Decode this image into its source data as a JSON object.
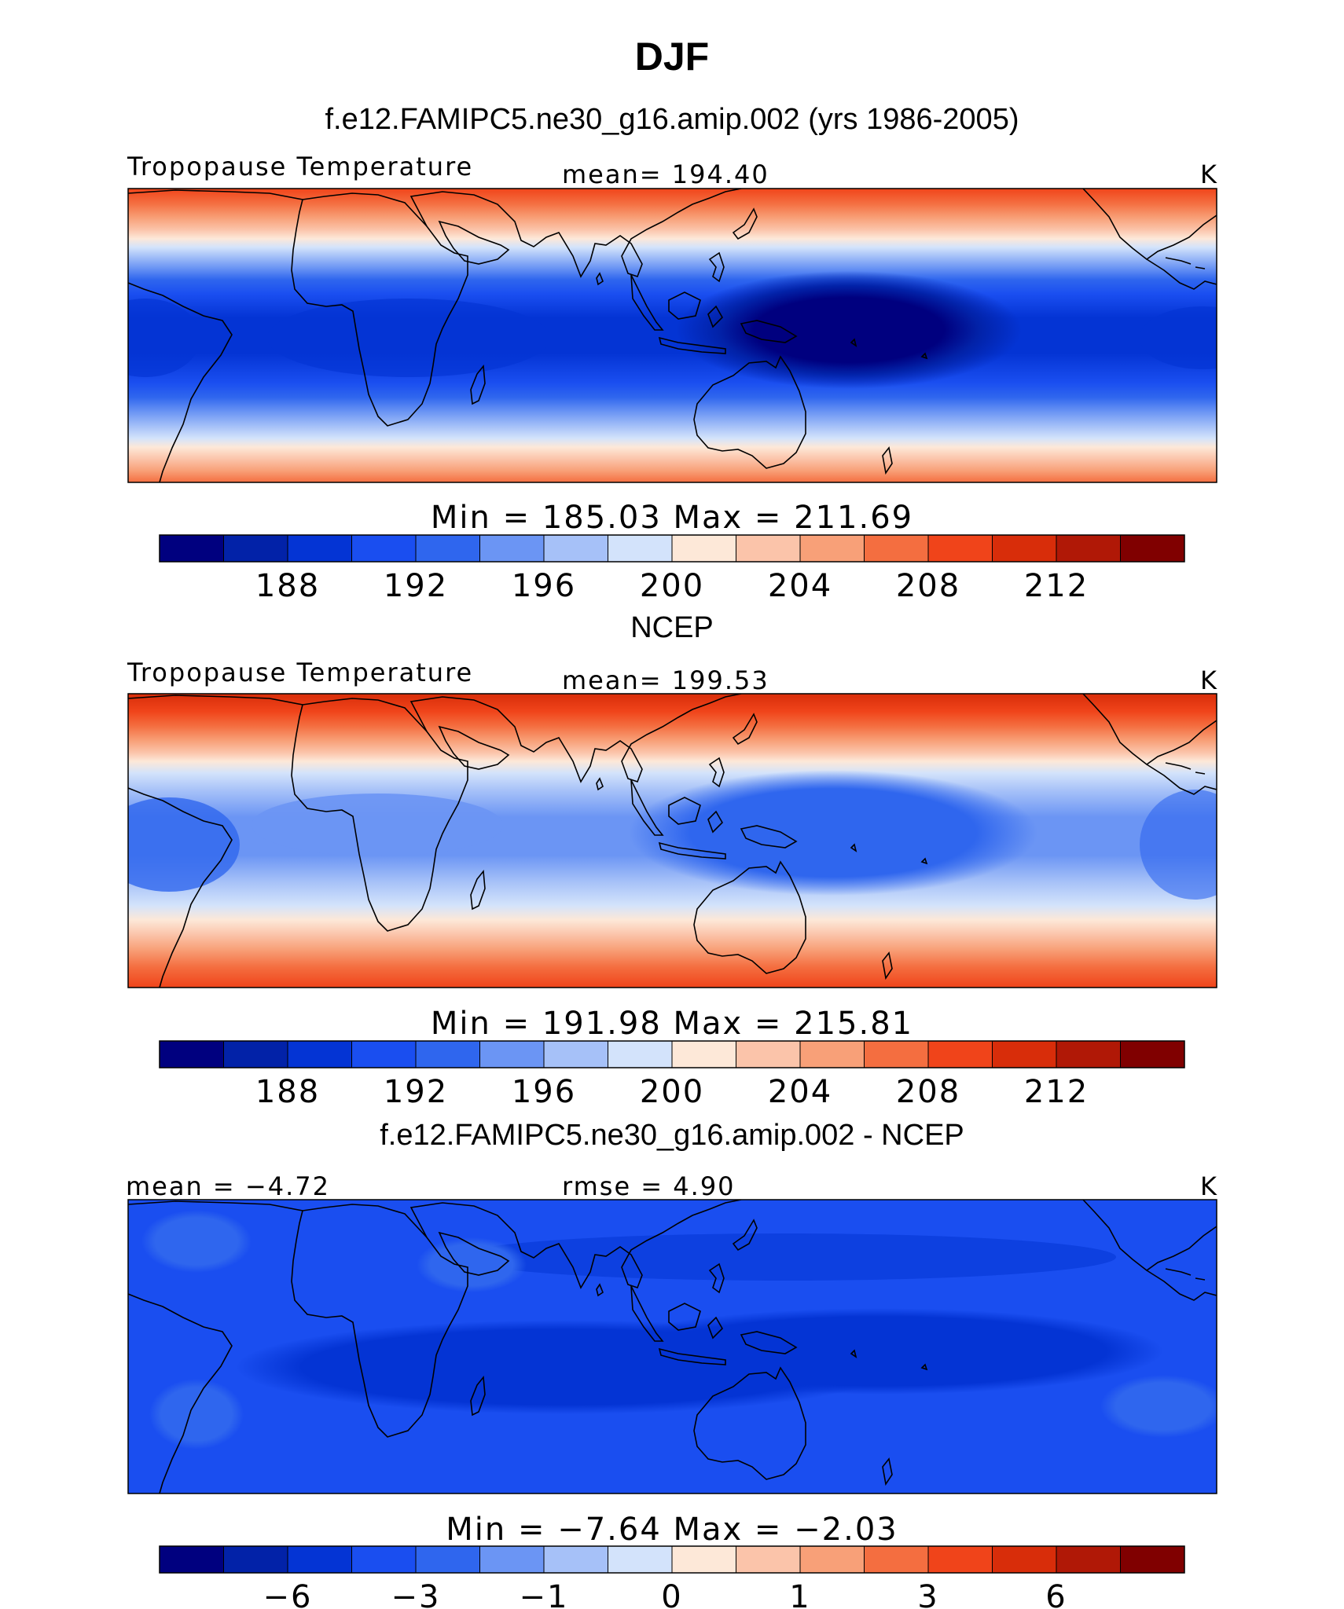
{
  "figure": {
    "season": "DJF",
    "units": "K",
    "color_scale": [
      "#00007f",
      "#0222a8",
      "#0434d4",
      "#1a4ef0",
      "#2f66ee",
      "#6b95f4",
      "#a6c1f8",
      "#d3e3fb",
      "#fde8d8",
      "#fbc4aa",
      "#f8a078",
      "#f46e40",
      "#f0441a",
      "#d82d0a",
      "#b01806",
      "#800000"
    ]
  },
  "panels": [
    {
      "id": "model",
      "header": "f.e12.FAMIPC5.ne30_g16.amip.002 (yrs 1986-2005)",
      "left_label": "Tropopause Temperature",
      "center_label": "mean=  194.40",
      "units": "K",
      "range_label": "Min  =  185.03  Max  =  211.69",
      "colorbar_ticks": [
        "188",
        "192",
        "196",
        "200",
        "204",
        "208",
        "212"
      ],
      "colorbar_tick_values": [
        188,
        192,
        196,
        200,
        204,
        208,
        212
      ],
      "stats": {
        "mean": 194.4,
        "min": 185.03,
        "max": 211.69
      }
    },
    {
      "id": "obs",
      "header": "NCEP",
      "left_label": "Tropopause Temperature",
      "center_label": "mean=  199.53",
      "units": "K",
      "range_label": "Min  =  191.98  Max  =  215.81",
      "colorbar_ticks": [
        "188",
        "192",
        "196",
        "200",
        "204",
        "208",
        "212"
      ],
      "colorbar_tick_values": [
        188,
        192,
        196,
        200,
        204,
        208,
        212
      ],
      "stats": {
        "mean": 199.53,
        "min": 191.98,
        "max": 215.81
      }
    },
    {
      "id": "diff",
      "header": "f.e12.FAMIPC5.ne30_g16.amip.002 - NCEP",
      "left_label": "mean  =    −4.72",
      "center_label": "rmse  =     4.90",
      "units": "K",
      "range_label": "Min  =   −7.64  Max  =   −2.03",
      "colorbar_ticks": [
        "−6",
        "−3",
        "−1",
        "0",
        "1",
        "3",
        "6"
      ],
      "colorbar_tick_values": [
        -6,
        -3,
        -1,
        0,
        1,
        3,
        6
      ],
      "stats": {
        "mean": -4.72,
        "rmse": 4.9,
        "min": -7.64,
        "max": -2.03
      }
    }
  ]
}
